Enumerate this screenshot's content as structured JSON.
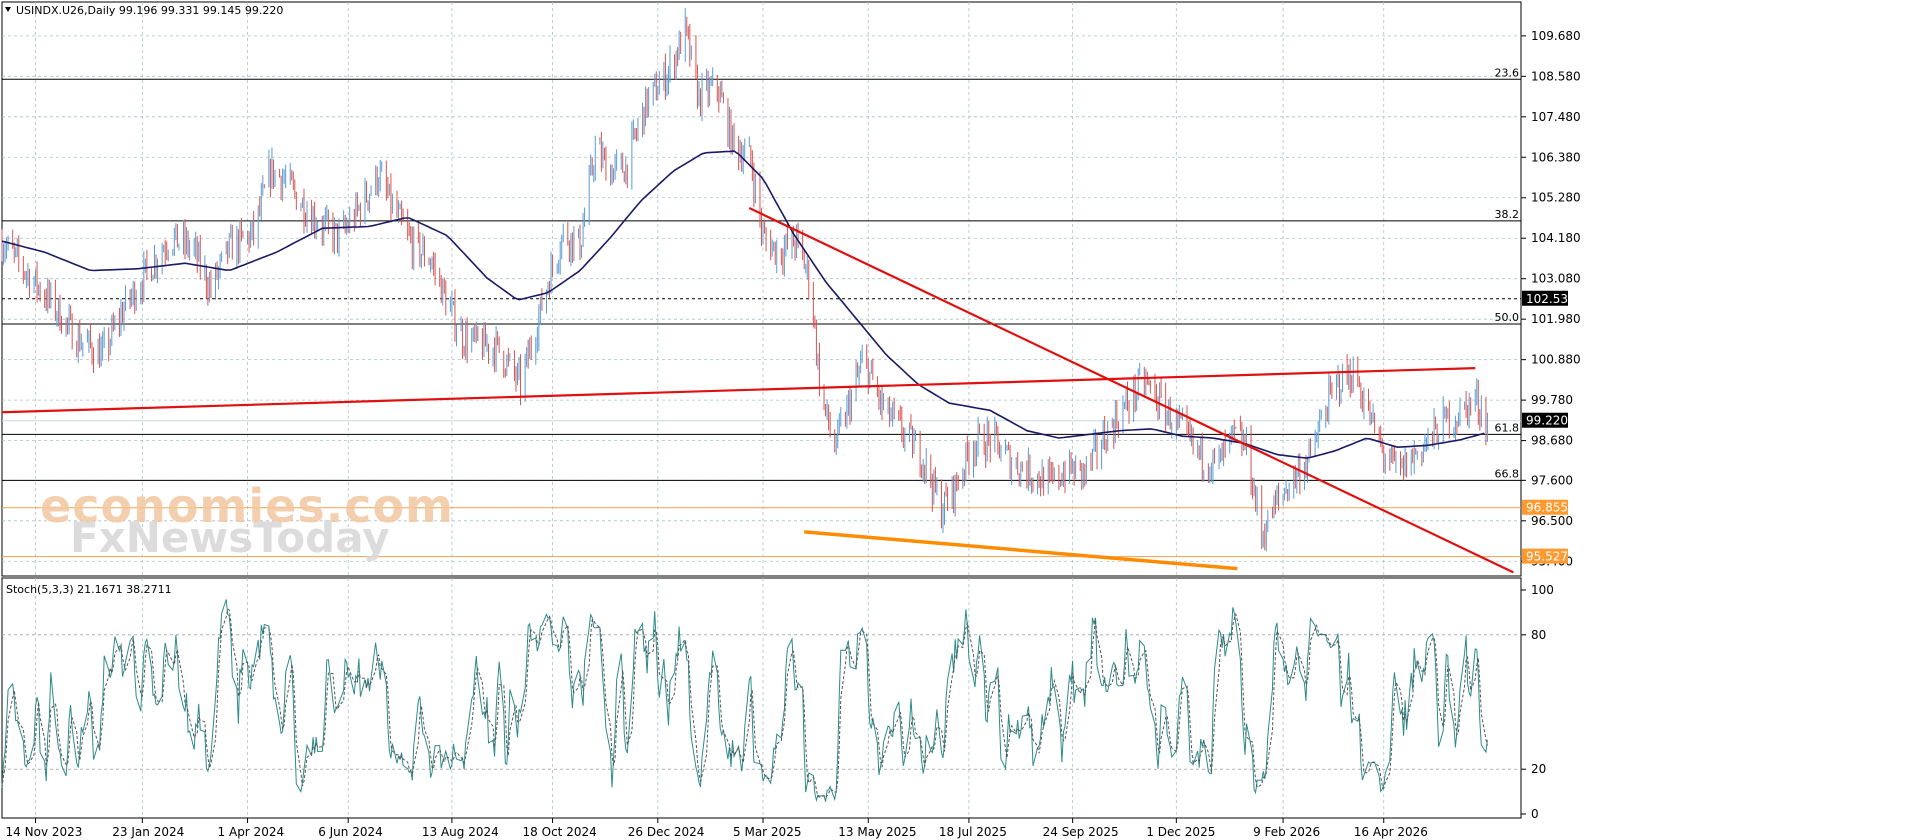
{
  "header": {
    "symbol_line": "USINDX.U26,Daily  99.196 99.331 99.145 99.220",
    "dropdown_icon": "triangle-down-icon"
  },
  "watermark": {
    "line1": "economies.com",
    "line2": "FxNewsToday"
  },
  "oscillator": {
    "label": "Stoch(5,3,3) 21.1671 38.2711",
    "levels": [
      100,
      80,
      20,
      0
    ],
    "k_color": "#2e8b8b",
    "d_color": "#555555"
  },
  "colors": {
    "bull_candle": "#5a9bd4",
    "bear_candle": "#d9534f",
    "ma_line": "#1a1a66",
    "trend_red": "#e01010",
    "trend_orange": "#ff8c00",
    "price_tag_bg": "#000000",
    "orange_tag_bg": "#ff9a30"
  },
  "chart_data": {
    "type": "candlestick",
    "title": "USINDX.U26,Daily",
    "ylim": [
      95.0,
      110.6
    ],
    "x_range": [
      "2023-10-23",
      "2026-07-15"
    ],
    "y_ticks": [
      "109.680",
      "108.580",
      "107.480",
      "106.380",
      "105.280",
      "104.180",
      "103.080",
      "101.980",
      "100.880",
      "99.780",
      "98.680",
      "97.600",
      "96.500",
      "95.400"
    ],
    "x_ticks": [
      {
        "label": "14 Nov 2023",
        "date": "2023-11-14"
      },
      {
        "label": "23 Jan 2024",
        "date": "2024-01-23"
      },
      {
        "label": "1 Apr 2024",
        "date": "2024-04-01"
      },
      {
        "label": "6 Jun 2024",
        "date": "2024-06-06"
      },
      {
        "label": "13 Aug 2024",
        "date": "2024-08-13"
      },
      {
        "label": "18 Oct 2024",
        "date": "2024-10-18"
      },
      {
        "label": "26 Dec 2024",
        "date": "2024-12-26"
      },
      {
        "label": "5 Mar 2025",
        "date": "2025-03-05"
      },
      {
        "label": "13 May 2025",
        "date": "2025-05-13"
      },
      {
        "label": "18 Jul 2025",
        "date": "2025-07-18"
      },
      {
        "label": "24 Sep 2025",
        "date": "2025-09-24"
      },
      {
        "label": "1 Dec 2025",
        "date": "2025-12-01"
      },
      {
        "label": "9 Feb 2026",
        "date": "2026-02-09"
      },
      {
        "label": "16 Apr 2026",
        "date": "2026-04-16"
      }
    ],
    "fib_levels": [
      {
        "label": "23.6",
        "value": 108.5
      },
      {
        "label": "38.2",
        "value": 104.65
      },
      {
        "label": "50.0",
        "value": 101.85
      },
      {
        "label": "61.8",
        "value": 98.85
      },
      {
        "label": "66.8",
        "value": 97.6
      }
    ],
    "price_tags": [
      {
        "label": "102.535",
        "value": 102.535,
        "style": "black"
      },
      {
        "label": "99.220",
        "value": 99.22,
        "style": "black"
      },
      {
        "label": "96.855",
        "value": 96.855,
        "style": "orange"
      },
      {
        "label": "95.527",
        "value": 95.527,
        "style": "orange"
      }
    ],
    "dotted_line": {
      "value": 102.535
    },
    "orange_hlines": [
      96.855,
      95.527
    ],
    "close_line": {
      "value": 99.22
    },
    "trendlines": [
      {
        "color": "red",
        "from": [
          "2023-10-23",
          99.45
        ],
        "to": [
          "2026-06-15",
          100.65
        ]
      },
      {
        "color": "red",
        "from": [
          "2025-02-24",
          105.0
        ],
        "to": [
          "2026-07-10",
          95.1
        ]
      },
      {
        "color": "orange",
        "from": [
          "2025-04-01",
          96.2
        ],
        "to": [
          "2026-01-10",
          95.2
        ]
      }
    ],
    "close_series": [
      [
        "2023-10-23",
        104.1
      ],
      [
        "2023-11-05",
        103.4
      ],
      [
        "2023-11-25",
        102.4
      ],
      [
        "2023-12-10",
        101.5
      ],
      [
        "2023-12-28",
        101.0
      ],
      [
        "2024-01-10",
        102.2
      ],
      [
        "2024-01-25",
        103.2
      ],
      [
        "2024-02-10",
        104.2
      ],
      [
        "2024-02-25",
        103.9
      ],
      [
        "2024-03-08",
        102.8
      ],
      [
        "2024-03-20",
        103.9
      ],
      [
        "2024-04-05",
        104.3
      ],
      [
        "2024-04-16",
        106.0
      ],
      [
        "2024-04-25",
        105.8
      ],
      [
        "2024-05-05",
        105.2
      ],
      [
        "2024-05-20",
        104.5
      ],
      [
        "2024-06-01",
        104.2
      ],
      [
        "2024-06-12",
        104.9
      ],
      [
        "2024-06-26",
        105.9
      ],
      [
        "2024-07-05",
        105.0
      ],
      [
        "2024-07-18",
        104.0
      ],
      [
        "2024-07-30",
        103.6
      ],
      [
        "2024-08-10",
        102.4
      ],
      [
        "2024-08-20",
        101.5
      ],
      [
        "2024-08-30",
        101.3
      ],
      [
        "2024-09-12",
        101.2
      ],
      [
        "2024-09-27",
        100.2
      ],
      [
        "2024-10-05",
        101.4
      ],
      [
        "2024-10-15",
        103.0
      ],
      [
        "2024-10-25",
        104.3
      ],
      [
        "2024-11-05",
        104.0
      ],
      [
        "2024-11-15",
        106.6
      ],
      [
        "2024-11-25",
        106.0
      ],
      [
        "2024-12-05",
        106.1
      ],
      [
        "2024-12-18",
        107.8
      ],
      [
        "2025-01-02",
        108.7
      ],
      [
        "2025-01-13",
        109.8
      ],
      [
        "2025-01-22",
        108.0
      ],
      [
        "2025-02-03",
        108.3
      ],
      [
        "2025-02-13",
        106.8
      ],
      [
        "2025-02-25",
        106.3
      ],
      [
        "2025-03-05",
        104.2
      ],
      [
        "2025-03-15",
        103.8
      ],
      [
        "2025-03-27",
        104.1
      ],
      [
        "2025-04-05",
        103.0
      ],
      [
        "2025-04-12",
        99.9
      ],
      [
        "2025-04-21",
        98.5
      ],
      [
        "2025-04-30",
        99.6
      ],
      [
        "2025-05-10",
        100.9
      ],
      [
        "2025-05-22",
        99.6
      ],
      [
        "2025-06-05",
        98.9
      ],
      [
        "2025-06-18",
        98.2
      ],
      [
        "2025-06-30",
        96.8
      ],
      [
        "2025-07-10",
        97.5
      ],
      [
        "2025-07-20",
        98.6
      ],
      [
        "2025-08-02",
        98.7
      ],
      [
        "2025-08-15",
        98.1
      ],
      [
        "2025-08-28",
        97.8
      ],
      [
        "2025-09-10",
        97.5
      ],
      [
        "2025-09-20",
        97.9
      ],
      [
        "2025-10-02",
        97.8
      ],
      [
        "2025-10-15",
        98.8
      ],
      [
        "2025-10-30",
        99.7
      ],
      [
        "2025-11-10",
        100.3
      ],
      [
        "2025-11-22",
        99.6
      ],
      [
        "2025-12-05",
        98.9
      ],
      [
        "2025-12-16",
        98.3
      ],
      [
        "2025-12-28",
        98.0
      ],
      [
        "2026-01-08",
        98.8
      ],
      [
        "2026-01-16",
        98.5
      ],
      [
        "2026-01-26",
        96.1
      ],
      [
        "2026-02-05",
        97.0
      ],
      [
        "2026-02-18",
        97.8
      ],
      [
        "2026-02-28",
        98.3
      ],
      [
        "2026-03-08",
        99.5
      ],
      [
        "2026-03-18",
        100.3
      ],
      [
        "2026-03-28",
        100.5
      ],
      [
        "2026-04-06",
        99.4
      ],
      [
        "2026-04-16",
        98.3
      ],
      [
        "2026-04-26",
        97.8
      ],
      [
        "2026-05-06",
        98.3
      ],
      [
        "2026-05-16",
        98.7
      ],
      [
        "2026-05-26",
        99.2
      ],
      [
        "2026-06-05",
        99.4
      ],
      [
        "2026-06-15",
        99.8
      ],
      [
        "2026-06-23",
        99.22
      ]
    ],
    "ma_series": [
      [
        "2023-10-23",
        104.1
      ],
      [
        "2023-11-20",
        103.8
      ],
      [
        "2023-12-20",
        103.3
      ],
      [
        "2024-01-20",
        103.35
      ],
      [
        "2024-02-20",
        103.5
      ],
      [
        "2024-03-20",
        103.3
      ],
      [
        "2024-04-20",
        103.8
      ],
      [
        "2024-05-20",
        104.45
      ],
      [
        "2024-06-20",
        104.5
      ],
      [
        "2024-07-15",
        104.75
      ],
      [
        "2024-08-10",
        104.25
      ],
      [
        "2024-09-05",
        103.1
      ],
      [
        "2024-09-25",
        102.5
      ],
      [
        "2024-10-15",
        102.7
      ],
      [
        "2024-11-05",
        103.3
      ],
      [
        "2024-11-25",
        104.2
      ],
      [
        "2024-12-15",
        105.2
      ],
      [
        "2025-01-05",
        106.0
      ],
      [
        "2025-01-25",
        106.5
      ],
      [
        "2025-02-15",
        106.55
      ],
      [
        "2025-03-05",
        105.8
      ],
      [
        "2025-03-25",
        104.3
      ],
      [
        "2025-04-15",
        103.0
      ],
      [
        "2025-05-05",
        102.0
      ],
      [
        "2025-05-25",
        101.0
      ],
      [
        "2025-06-15",
        100.2
      ],
      [
        "2025-07-05",
        99.7
      ],
      [
        "2025-08-01",
        99.5
      ],
      [
        "2025-08-25",
        98.95
      ],
      [
        "2025-09-15",
        98.75
      ],
      [
        "2025-10-05",
        98.85
      ],
      [
        "2025-10-25",
        98.95
      ],
      [
        "2025-11-15",
        99.0
      ],
      [
        "2025-12-05",
        98.8
      ],
      [
        "2025-12-25",
        98.75
      ],
      [
        "2026-01-15",
        98.6
      ],
      [
        "2026-02-05",
        98.3
      ],
      [
        "2026-02-25",
        98.2
      ],
      [
        "2026-03-15",
        98.4
      ],
      [
        "2026-04-05",
        98.75
      ],
      [
        "2026-04-25",
        98.5
      ],
      [
        "2026-05-15",
        98.55
      ],
      [
        "2026-06-05",
        98.7
      ],
      [
        "2026-06-23",
        98.9
      ]
    ]
  }
}
